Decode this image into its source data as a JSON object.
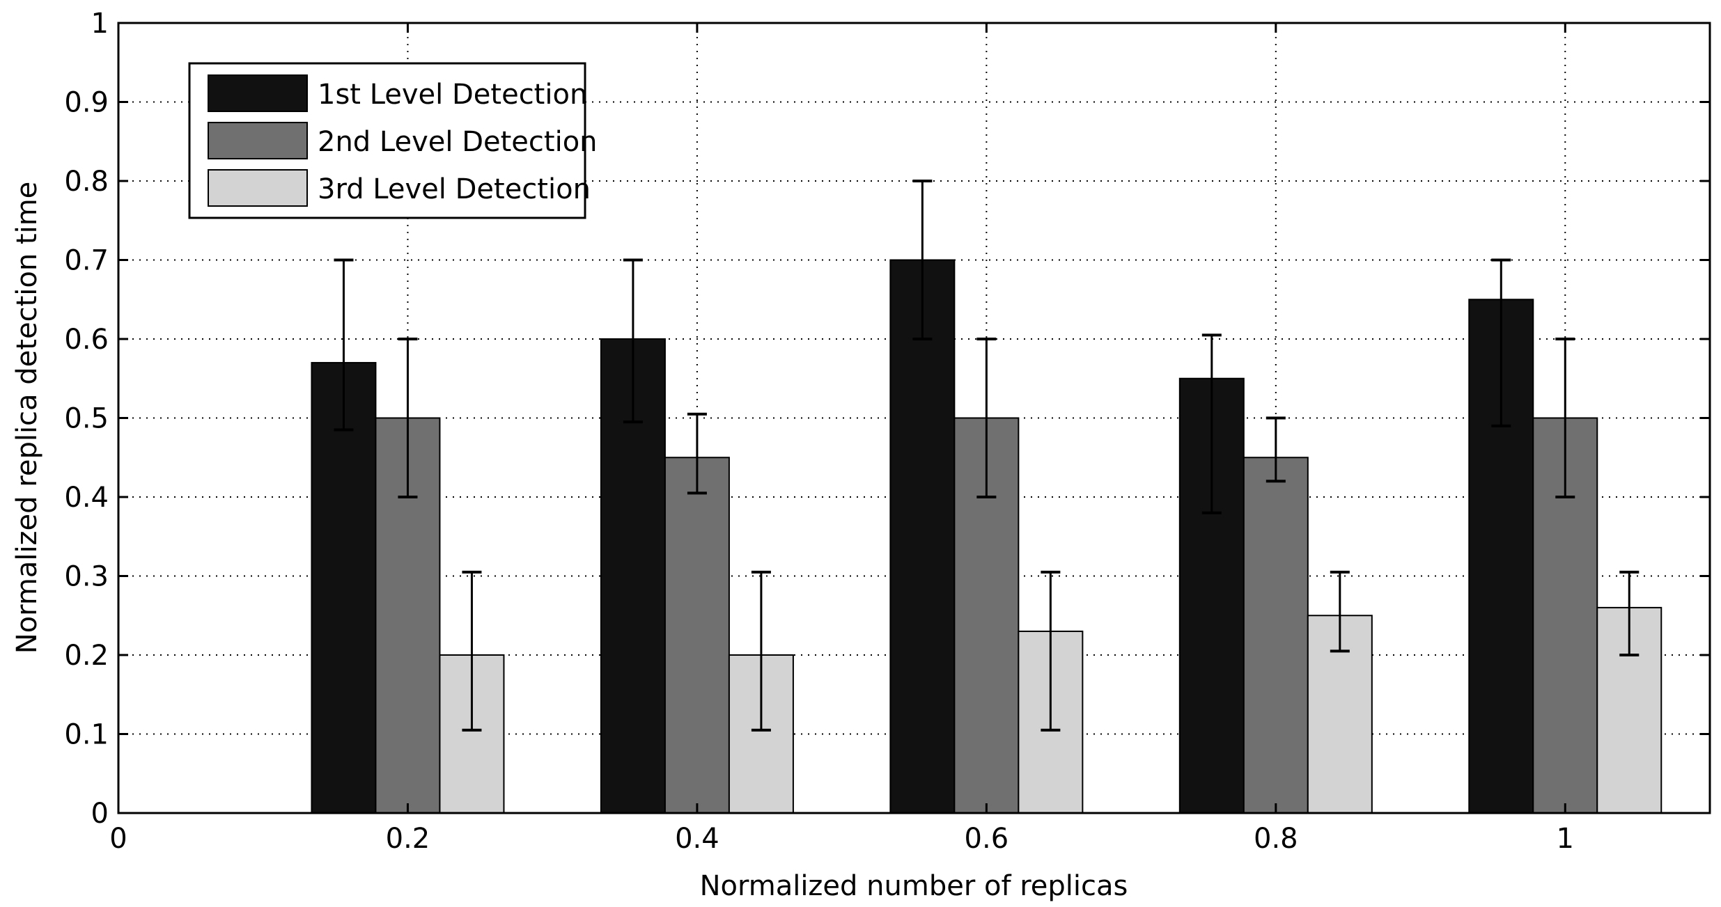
{
  "chart_data": {
    "type": "bar",
    "xlabel": "Normalized number of replicas",
    "ylabel": "Normalized replica detection time",
    "xlim": [
      0,
      1.1
    ],
    "ylim": [
      0,
      1
    ],
    "x_ticks": [
      "0",
      "0.2",
      "0.4",
      "0.6",
      "0.8",
      "1"
    ],
    "x_tick_values": [
      0,
      0.2,
      0.4,
      0.6,
      0.8,
      1.0
    ],
    "y_ticks": [
      "0",
      "0.1",
      "0.2",
      "0.3",
      "0.4",
      "0.5",
      "0.6",
      "0.7",
      "0.8",
      "0.9",
      "1"
    ],
    "y_tick_values": [
      0,
      0.1,
      0.2,
      0.3,
      0.4,
      0.5,
      0.6,
      0.7,
      0.8,
      0.9,
      1.0
    ],
    "x": [
      0.2,
      0.4,
      0.6,
      0.8,
      1.0
    ],
    "grid": true,
    "legend_position": "top-left",
    "series": [
      {
        "name": "1st Level Detection",
        "color": "#111111",
        "values": [
          0.57,
          0.6,
          0.7,
          0.55,
          0.65
        ],
        "err_low": [
          0.485,
          0.495,
          0.6,
          0.38,
          0.49
        ],
        "err_high": [
          0.7,
          0.7,
          0.8,
          0.605,
          0.7
        ]
      },
      {
        "name": "2nd Level Detection",
        "color": "#707070",
        "values": [
          0.5,
          0.45,
          0.5,
          0.45,
          0.5
        ],
        "err_low": [
          0.4,
          0.405,
          0.4,
          0.42,
          0.4
        ],
        "err_high": [
          0.6,
          0.505,
          0.6,
          0.5,
          0.6
        ]
      },
      {
        "name": "3rd Level Detection",
        "color": "#d3d3d3",
        "values": [
          0.2,
          0.2,
          0.23,
          0.25,
          0.26
        ],
        "err_low": [
          0.105,
          0.105,
          0.105,
          0.205,
          0.2
        ],
        "err_high": [
          0.305,
          0.305,
          0.305,
          0.305,
          0.305
        ]
      }
    ]
  }
}
